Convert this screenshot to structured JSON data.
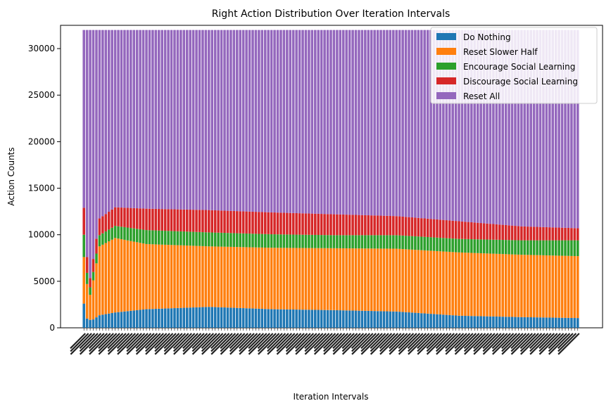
{
  "chart_data": {
    "type": "bar",
    "stacked": true,
    "title": "Right Action Distribution Over Iteration Intervals",
    "xlabel": "Iteration Intervals",
    "ylabel": "Action Counts",
    "ylim": [
      0,
      32500
    ],
    "yticks": [
      0,
      5000,
      10000,
      15000,
      20000,
      25000,
      30000
    ],
    "x_tick_labels_legible": false,
    "bar_count": 159,
    "total_per_bar": 32000,
    "grid": false,
    "legend_position": "top-right",
    "series": [
      {
        "name": "Do Nothing",
        "color": "#1f77b4",
        "anchors": [
          [
            0,
            2600
          ],
          [
            1,
            1000
          ],
          [
            2,
            850
          ],
          [
            3,
            900
          ],
          [
            5,
            1350
          ],
          [
            10,
            1650
          ],
          [
            20,
            2000
          ],
          [
            40,
            2250
          ],
          [
            60,
            2000
          ],
          [
            80,
            1900
          ],
          [
            100,
            1750
          ],
          [
            120,
            1300
          ],
          [
            140,
            1150
          ],
          [
            158,
            1050
          ]
        ]
      },
      {
        "name": "Reset Slower Half",
        "color": "#ff7f0e",
        "anchors": [
          [
            0,
            5000
          ],
          [
            1,
            3700
          ],
          [
            2,
            2700
          ],
          [
            3,
            4200
          ],
          [
            5,
            7400
          ],
          [
            10,
            8000
          ],
          [
            20,
            7000
          ],
          [
            40,
            6500
          ],
          [
            60,
            6600
          ],
          [
            80,
            6650
          ],
          [
            100,
            6750
          ],
          [
            120,
            6800
          ],
          [
            140,
            6700
          ],
          [
            158,
            6650
          ]
        ]
      },
      {
        "name": "Encourage Social Learning",
        "color": "#2ca02c",
        "anchors": [
          [
            0,
            2400
          ],
          [
            1,
            1200
          ],
          [
            2,
            800
          ],
          [
            3,
            900
          ],
          [
            5,
            1200
          ],
          [
            10,
            1300
          ],
          [
            20,
            1500
          ],
          [
            40,
            1500
          ],
          [
            60,
            1450
          ],
          [
            80,
            1400
          ],
          [
            100,
            1450
          ],
          [
            120,
            1450
          ],
          [
            140,
            1550
          ],
          [
            158,
            1700
          ]
        ]
      },
      {
        "name": "Discourage Social Learning",
        "color": "#d62728",
        "anchors": [
          [
            0,
            2900
          ],
          [
            1,
            1700
          ],
          [
            2,
            1000
          ],
          [
            3,
            1400
          ],
          [
            5,
            1800
          ],
          [
            10,
            2000
          ],
          [
            20,
            2300
          ],
          [
            40,
            2400
          ],
          [
            60,
            2350
          ],
          [
            80,
            2250
          ],
          [
            100,
            2050
          ],
          [
            120,
            1900
          ],
          [
            140,
            1500
          ],
          [
            158,
            1300
          ]
        ]
      },
      {
        "name": "Reset All",
        "color": "#9467bd",
        "anchors": "remainder"
      }
    ]
  }
}
